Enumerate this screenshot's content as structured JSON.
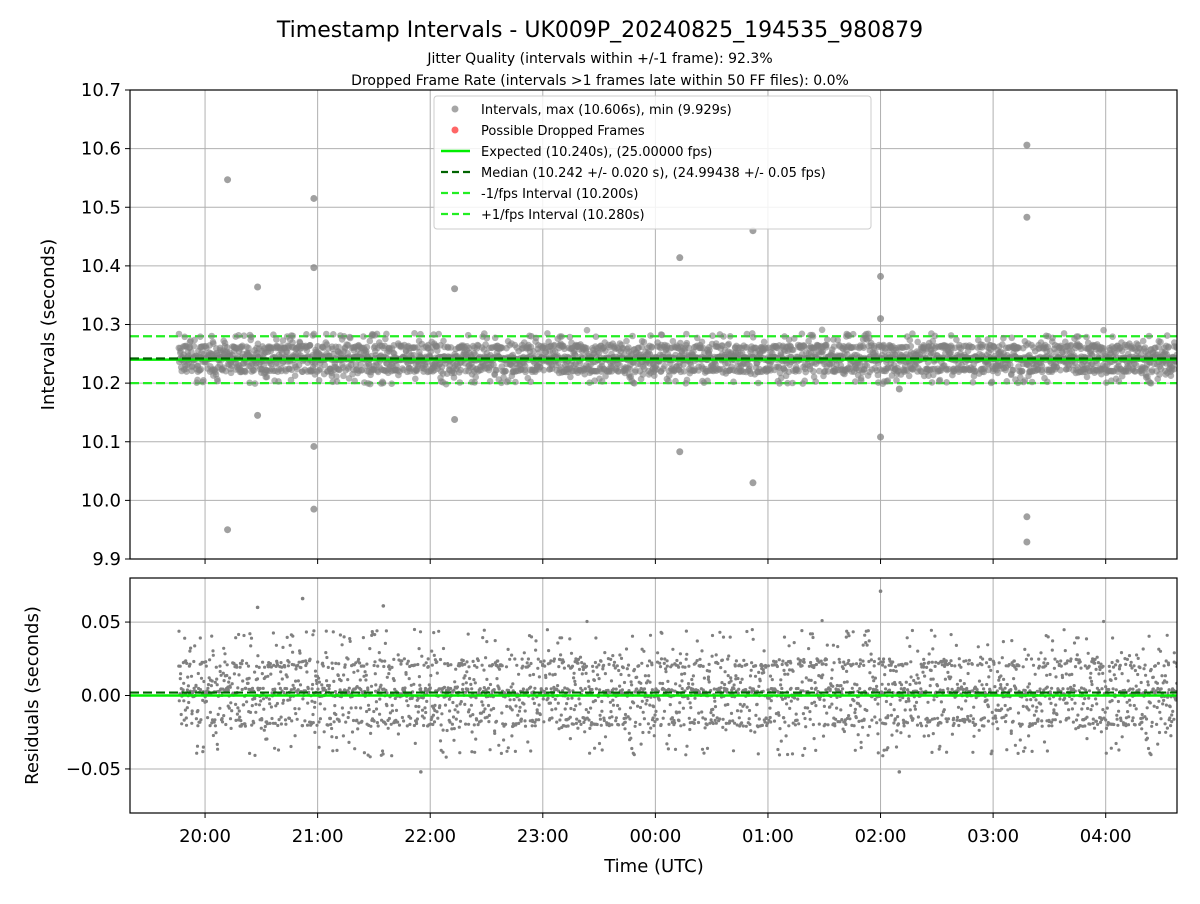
{
  "figure": {
    "title": "Timestamp Intervals - UK009P_20240825_194535_980879",
    "subtitle_1": "Jitter Quality (intervals within +/-1 frame): 92.3%",
    "subtitle_2": "Dropped Frame Rate (intervals >1 frames late within 50 FF files): 0.0%",
    "xlabel": "Time (UTC)"
  },
  "colors": {
    "points": "#808080",
    "dropped": "#ff4040",
    "expected": "#00ee00",
    "median": "#006400",
    "bounds": "#22ee22",
    "grid": "#b0b0b0"
  },
  "chart_data": [
    {
      "type": "scatter",
      "panel": "intervals",
      "ylabel": "Intervals (seconds)",
      "ylim": [
        9.9,
        10.7
      ],
      "y_ticks": [
        "9.9",
        "10.0",
        "10.1",
        "10.2",
        "10.3",
        "10.4",
        "10.5",
        "10.6",
        "10.7"
      ],
      "x_range": [
        "19:20",
        "04:38"
      ],
      "x_ticks": [
        "20:00",
        "21:00",
        "22:00",
        "23:00",
        "00:00",
        "01:00",
        "02:00",
        "03:00",
        "04:00"
      ],
      "grid": true,
      "legend_position": "top-center",
      "legend": [
        "Intervals, max (10.606s), min (9.929s)",
        "Possible Dropped Frames",
        "Expected (10.240s), (25.00000 fps)",
        "Median (10.242 +/- 0.020 s), (24.99438 +/- 0.05 fps)",
        "-1/fps Interval (10.200s)",
        "+1/fps Interval (10.280s)"
      ],
      "lines": {
        "expected": 10.24,
        "median": 10.242,
        "minus_one_frame": 10.2,
        "plus_one_frame": 10.28
      },
      "bulk": {
        "x_start": "19:46",
        "x_end": "04:38",
        "y_center": 10.242,
        "y_spread": 0.02,
        "approx_count": 3100,
        "max": 10.606,
        "min": 9.929
      },
      "outliers": [
        {
          "x": "20:12",
          "y": 10.547
        },
        {
          "x": "20:12",
          "y": 9.95
        },
        {
          "x": "20:28",
          "y": 10.364
        },
        {
          "x": "20:28",
          "y": 10.145
        },
        {
          "x": "20:58",
          "y": 10.515
        },
        {
          "x": "20:58",
          "y": 10.397
        },
        {
          "x": "20:58",
          "y": 10.092
        },
        {
          "x": "20:58",
          "y": 9.985
        },
        {
          "x": "22:13",
          "y": 10.361
        },
        {
          "x": "22:13",
          "y": 10.138
        },
        {
          "x": "00:13",
          "y": 10.414
        },
        {
          "x": "00:13",
          "y": 10.083
        },
        {
          "x": "00:52",
          "y": 10.46
        },
        {
          "x": "00:52",
          "y": 10.03
        },
        {
          "x": "02:00",
          "y": 10.382
        },
        {
          "x": "02:00",
          "y": 10.31
        },
        {
          "x": "02:00",
          "y": 10.108
        },
        {
          "x": "02:10",
          "y": 10.19
        },
        {
          "x": "03:18",
          "y": 10.606
        },
        {
          "x": "03:18",
          "y": 10.483
        },
        {
          "x": "03:18",
          "y": 9.972
        },
        {
          "x": "03:18",
          "y": 9.929
        }
      ]
    },
    {
      "type": "scatter",
      "panel": "residuals",
      "ylabel": "Residuals (seconds)",
      "ylim": [
        -0.08,
        0.08
      ],
      "y_ticks": [
        "−0.05",
        "0.00",
        "0.05"
      ],
      "y_tick_values": [
        -0.05,
        0.0,
        0.05
      ],
      "grid": true,
      "lines": {
        "zero": 0.0,
        "median_offset": 0.002
      },
      "outliers": [
        {
          "x": "20:28",
          "y": 0.06
        },
        {
          "x": "20:52",
          "y": 0.066
        },
        {
          "x": "21:35",
          "y": 0.061
        },
        {
          "x": "21:55",
          "y": -0.052
        },
        {
          "x": "02:00",
          "y": 0.071
        },
        {
          "x": "02:10",
          "y": -0.052
        }
      ]
    }
  ]
}
